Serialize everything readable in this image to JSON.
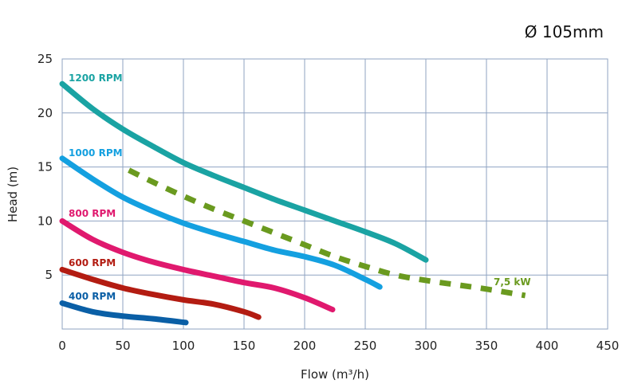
{
  "chart_data": {
    "type": "line",
    "title": "Ø 105mm",
    "xlabel": "Flow (m³/h)",
    "ylabel": "Head (m)",
    "xlim": [
      0,
      450
    ],
    "ylim": [
      0,
      25
    ],
    "x_ticks": [
      "0",
      "50",
      "100",
      "150",
      "200",
      "250",
      "300",
      "350",
      "400",
      "450"
    ],
    "y_ticks": [
      "5",
      "10",
      "15",
      "20",
      "25"
    ],
    "grid": true,
    "series": [
      {
        "name": "1200 RPM",
        "color": "#1aa3a3",
        "style": "solid",
        "points": [
          [
            0,
            22.7
          ],
          [
            25,
            20.4
          ],
          [
            50,
            18.5
          ],
          [
            75,
            16.9
          ],
          [
            100,
            15.4
          ],
          [
            125,
            14.2
          ],
          [
            150,
            13.1
          ],
          [
            175,
            12.0
          ],
          [
            200,
            11.0
          ],
          [
            225,
            10.0
          ],
          [
            250,
            9.0
          ],
          [
            275,
            7.9
          ],
          [
            300,
            6.4
          ]
        ]
      },
      {
        "name": "1000 RPM",
        "color": "#14a0e0",
        "style": "solid",
        "points": [
          [
            0,
            15.8
          ],
          [
            25,
            13.9
          ],
          [
            50,
            12.2
          ],
          [
            75,
            10.9
          ],
          [
            100,
            9.8
          ],
          [
            125,
            8.9
          ],
          [
            150,
            8.1
          ],
          [
            175,
            7.3
          ],
          [
            200,
            6.7
          ],
          [
            225,
            5.9
          ],
          [
            250,
            4.6
          ],
          [
            262,
            3.9
          ]
        ]
      },
      {
        "name": "800 RPM",
        "color": "#e0196e",
        "style": "solid",
        "points": [
          [
            0,
            10.0
          ],
          [
            25,
            8.3
          ],
          [
            50,
            7.1
          ],
          [
            75,
            6.2
          ],
          [
            100,
            5.5
          ],
          [
            125,
            4.9
          ],
          [
            150,
            4.3
          ],
          [
            175,
            3.8
          ],
          [
            200,
            2.9
          ],
          [
            223,
            1.8
          ]
        ]
      },
      {
        "name": "600 RPM",
        "color": "#b31c12",
        "style": "solid",
        "points": [
          [
            0,
            5.5
          ],
          [
            25,
            4.6
          ],
          [
            50,
            3.8
          ],
          [
            75,
            3.2
          ],
          [
            100,
            2.7
          ],
          [
            125,
            2.3
          ],
          [
            150,
            1.6
          ],
          [
            162,
            1.1
          ]
        ]
      },
      {
        "name": "400 RPM",
        "color": "#0a5fa6",
        "style": "solid",
        "points": [
          [
            0,
            2.4
          ],
          [
            25,
            1.6
          ],
          [
            50,
            1.2
          ],
          [
            75,
            0.95
          ],
          [
            102,
            0.6
          ]
        ]
      },
      {
        "name": "7,5 kW",
        "color": "#6a9a1f",
        "style": "dashed",
        "points": [
          [
            55,
            14.7
          ],
          [
            75,
            13.6
          ],
          [
            100,
            12.3
          ],
          [
            125,
            11.1
          ],
          [
            150,
            10.0
          ],
          [
            175,
            8.9
          ],
          [
            200,
            7.8
          ],
          [
            225,
            6.7
          ],
          [
            250,
            5.8
          ],
          [
            275,
            5.0
          ],
          [
            300,
            4.5
          ],
          [
            325,
            4.1
          ],
          [
            350,
            3.7
          ],
          [
            382,
            3.1
          ]
        ]
      }
    ]
  }
}
